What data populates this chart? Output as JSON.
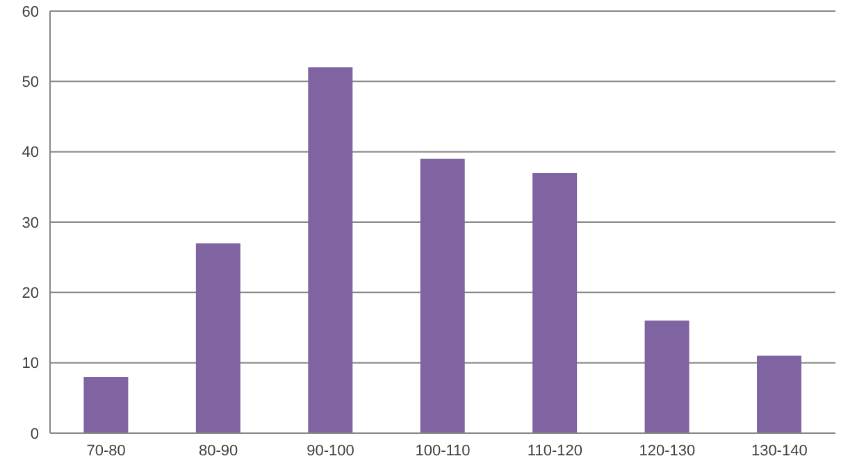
{
  "chart_data": {
    "type": "bar",
    "categories": [
      "70-80",
      "80-90",
      "90-100",
      "100-110",
      "110-120",
      "120-130",
      "130-140"
    ],
    "values": [
      8,
      27,
      52,
      39,
      37,
      16,
      11
    ],
    "color": "#8064a2",
    "ylim": [
      0,
      60
    ],
    "yticks": [
      0,
      10,
      20,
      30,
      40,
      50,
      60
    ],
    "grid": "y"
  }
}
